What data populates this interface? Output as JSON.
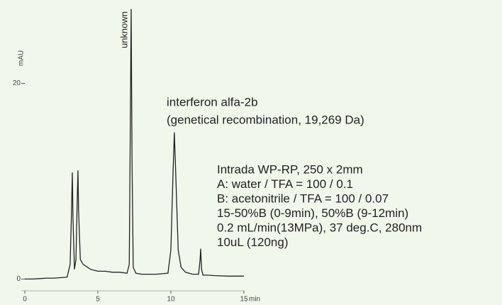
{
  "chart_data": {
    "type": "line",
    "y_label": "mAU",
    "x_label": "min",
    "x": [
      0,
      0.5,
      1,
      1.5,
      2,
      2.5,
      2.9,
      3.1,
      3.2,
      3.25,
      3.3,
      3.4,
      3.5,
      3.6,
      3.64,
      3.68,
      3.8,
      4,
      4.5,
      5,
      5.5,
      6,
      6.5,
      7,
      7.15,
      7.22,
      7.28,
      7.34,
      7.42,
      7.6,
      8,
      9,
      9.8,
      10.0,
      10.15,
      10.24,
      10.35,
      10.5,
      10.7,
      11,
      11.5,
      11.9,
      12.0,
      12.04,
      12.1,
      12.2,
      12.5,
      13,
      14,
      15
    ],
    "series": [
      {
        "color": "#222222",
        "values": [
          0,
          0,
          0.05,
          0.1,
          0.1,
          0.15,
          0.2,
          1.5,
          7,
          10.9,
          6,
          1,
          2,
          9,
          11.1,
          7,
          2,
          1.5,
          1,
          0.8,
          0.8,
          0.7,
          0.7,
          0.6,
          1.5,
          15,
          27.6,
          12,
          1.2,
          0.6,
          0.5,
          0.5,
          0.6,
          3,
          11,
          15,
          10,
          3,
          1.2,
          0.7,
          0.5,
          0.5,
          2,
          3.1,
          1,
          0.4,
          0.4,
          0.35,
          0.3,
          0.3
        ]
      }
    ],
    "xlim": [
      0,
      15
    ],
    "xticks": [
      0,
      5,
      10,
      15
    ],
    "ylim": [
      -1.2,
      27.8
    ],
    "yticks": [
      0,
      20
    ],
    "annotations": [
      "unknown",
      "interferon alfa-2b",
      "(genetical recombination, 19,269 Da)"
    ],
    "conditions": [
      "Intrada WP-RP, 250 x 2mm",
      "A: water / TFA = 100 / 0.1",
      "B: acetonitrile / TFA = 100 / 0.07",
      "15-50%B (0-9min), 50%B (9-12min)",
      "0.2 mL/min(13MPa), 37 deg.C, 280nm",
      "10uL (120ng)"
    ]
  }
}
